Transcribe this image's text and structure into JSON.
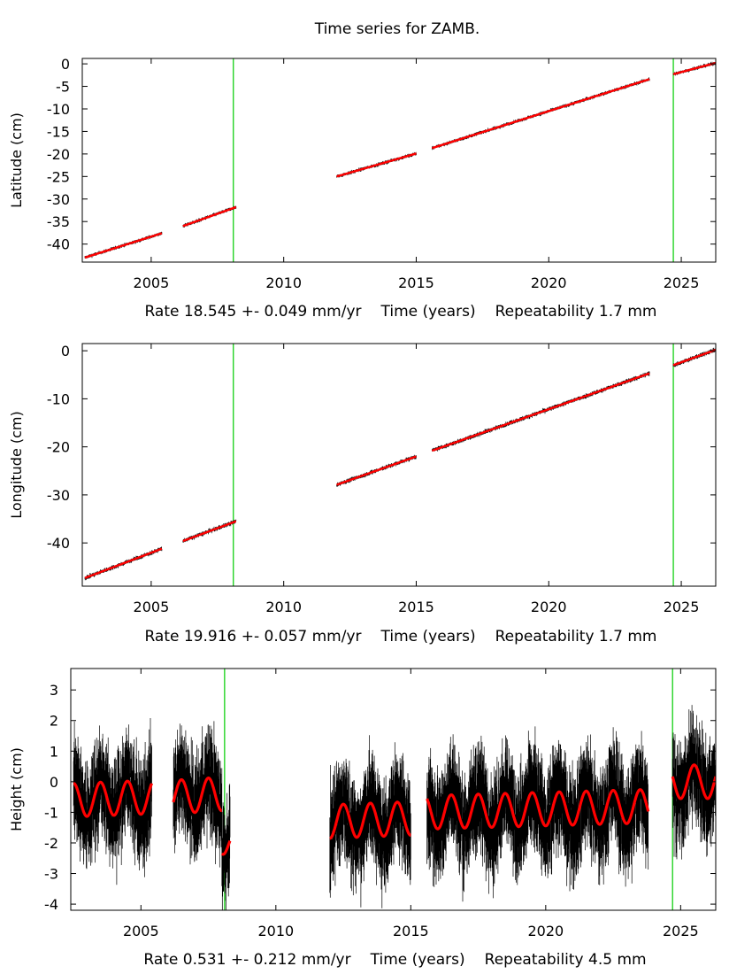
{
  "page_title": "Time series for ZAMB.",
  "colors": {
    "model": "#ff0000",
    "data": "#000000",
    "break_line": "#00cc00",
    "frame": "#000000"
  },
  "chart_data": [
    {
      "type": "scatter",
      "ylabel": "Latitude (cm)",
      "xlabel": "Time (years)",
      "rate_text": "Rate 18.545 +- 0.049 mm/yr",
      "xlabel_text": "Time (years)",
      "repeat_text": "Repeatability 1.7 mm",
      "xlim": [
        2002.4,
        2026.3
      ],
      "ylim": [
        -44,
        1.2
      ],
      "xticks": [
        2005,
        2010,
        2015,
        2020,
        2025
      ],
      "yticks": [
        0,
        -5,
        -10,
        -15,
        -20,
        -25,
        -30,
        -35,
        -40
      ],
      "breaks": [
        2008.1,
        2024.7
      ],
      "segments": [
        {
          "x": [
            2002.5,
            2005.4
          ],
          "y": [
            -43.0,
            -37.6
          ]
        },
        {
          "x": [
            2006.2,
            2008.2
          ],
          "y": [
            -36.0,
            -31.8
          ]
        },
        {
          "x": [
            2012.0,
            2015.0
          ],
          "y": [
            -25.0,
            -19.9
          ]
        },
        {
          "x": [
            2015.6,
            2023.8
          ],
          "y": [
            -18.7,
            -3.4
          ]
        },
        {
          "x": [
            2024.7,
            2026.3
          ],
          "y": [
            -2.3,
            0.2
          ]
        }
      ],
      "scatter_noise": 0.7,
      "seasonal_amp": 0
    },
    {
      "type": "scatter",
      "ylabel": "Longitude (cm)",
      "xlabel": "Time (years)",
      "rate_text": "Rate 19.916 +- 0.057 mm/yr",
      "xlabel_text": "Time (years)",
      "repeat_text": "Repeatability 1.7 mm",
      "xlim": [
        2002.4,
        2026.3
      ],
      "ylim": [
        -49,
        1.5
      ],
      "xticks": [
        2005,
        2010,
        2015,
        2020,
        2025
      ],
      "yticks": [
        0,
        -10,
        -20,
        -30,
        -40
      ],
      "breaks": [
        2008.1,
        2024.7
      ],
      "segments": [
        {
          "x": [
            2002.5,
            2005.4
          ],
          "y": [
            -47.3,
            -41.2
          ]
        },
        {
          "x": [
            2006.2,
            2008.2
          ],
          "y": [
            -39.6,
            -35.5
          ]
        },
        {
          "x": [
            2012.0,
            2015.0
          ],
          "y": [
            -27.9,
            -22.0
          ]
        },
        {
          "x": [
            2015.6,
            2023.8
          ],
          "y": [
            -20.8,
            -4.7
          ]
        },
        {
          "x": [
            2024.7,
            2026.3
          ],
          "y": [
            -3.0,
            0.2
          ]
        }
      ],
      "scatter_noise": 0.8,
      "seasonal_amp": 0
    },
    {
      "type": "scatter",
      "ylabel": "Height (cm)",
      "xlabel": "Time (years)",
      "rate_text": "Rate 0.531 +- 0.212 mm/yr",
      "xlabel_text": "Time (years)",
      "repeat_text": "Repeatability 4.5 mm",
      "xlim": [
        2002.4,
        2026.3
      ],
      "ylim": [
        -4.2,
        3.7
      ],
      "xticks": [
        2005,
        2010,
        2015,
        2020,
        2025
      ],
      "yticks": [
        3,
        2,
        1,
        0,
        -1,
        -2,
        -3,
        -4
      ],
      "breaks": [
        2008.1,
        2024.7
      ],
      "segments": [
        {
          "x": [
            2002.5,
            2005.4
          ],
          "y": [
            -0.6,
            -0.5
          ]
        },
        {
          "x": [
            2006.2,
            2008.0
          ],
          "y": [
            -0.5,
            -0.4
          ]
        },
        {
          "x": [
            2008.0,
            2008.3
          ],
          "y": [
            -1.8,
            -2.1
          ]
        },
        {
          "x": [
            2012.0,
            2015.0
          ],
          "y": [
            -1.3,
            -1.2
          ]
        },
        {
          "x": [
            2015.6,
            2023.8
          ],
          "y": [
            -1.0,
            -0.8
          ]
        },
        {
          "x": [
            2024.7,
            2026.3
          ],
          "y": [
            0.0,
            0.0
          ]
        }
      ],
      "scatter_noise": 1.6,
      "seasonal_amp": 0.55
    }
  ]
}
